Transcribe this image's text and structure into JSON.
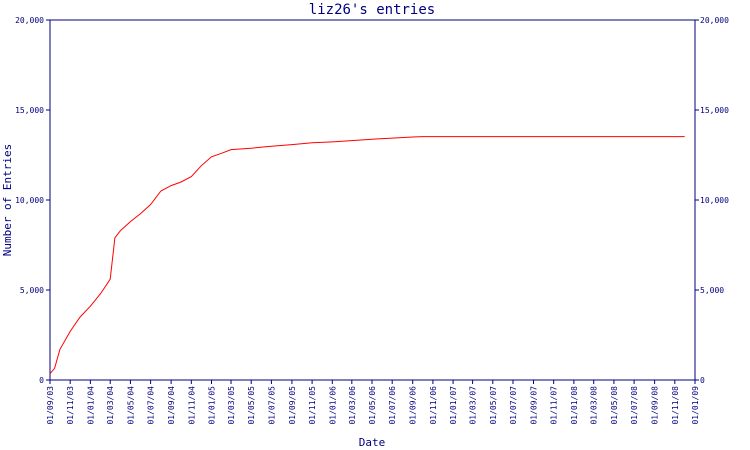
{
  "chart_data": {
    "type": "line",
    "title": "liz26's entries",
    "xlabel": "Date",
    "ylabel": "Number of Entries",
    "ylim": [
      0,
      20000
    ],
    "y_ticks": [
      "0",
      "5,000",
      "10,000",
      "15,000",
      "20,000"
    ],
    "y_tick_values": [
      0,
      5000,
      10000,
      15000,
      20000
    ],
    "x_ticks": [
      "01/09/03",
      "01/11/03",
      "01/01/04",
      "01/03/04",
      "01/05/04",
      "01/07/04",
      "01/09/04",
      "01/11/04",
      "01/01/05",
      "01/03/05",
      "01/05/05",
      "01/07/05",
      "01/09/05",
      "01/11/05",
      "01/01/06",
      "01/03/06",
      "01/05/06",
      "01/07/06",
      "01/09/06",
      "01/11/06",
      "01/01/07",
      "01/03/07",
      "01/05/07",
      "01/07/07",
      "01/09/07",
      "01/11/07",
      "01/01/08",
      "01/03/08",
      "01/05/08",
      "01/07/08",
      "01/09/08",
      "01/11/08",
      "01/01/09"
    ],
    "grid": false,
    "line_color": "#ff0000",
    "axis_color": "#000080",
    "series": [
      {
        "x": [
          "01/09/03",
          "15/09/03",
          "01/10/03",
          "01/11/03",
          "01/12/03",
          "01/01/04",
          "01/02/04",
          "01/03/04",
          "15/03/04",
          "01/04/04",
          "01/05/04",
          "01/06/04",
          "01/07/04",
          "01/08/04",
          "01/09/04",
          "01/10/04",
          "01/11/04",
          "01/12/04",
          "01/01/05",
          "01/02/05",
          "01/03/05",
          "01/05/05",
          "01/07/05",
          "01/09/05",
          "01/11/05",
          "01/01/06",
          "01/03/06",
          "01/05/06",
          "01/07/06",
          "01/09/06",
          "01/10/06",
          "01/11/06",
          "01/01/07",
          "01/06/07",
          "01/01/08",
          "01/06/08",
          "01/11/08",
          "01/12/08"
        ],
        "y": [
          350,
          650,
          1700,
          2700,
          3500,
          4100,
          4800,
          5600,
          7900,
          8300,
          8800,
          9250,
          9750,
          10500,
          10800,
          11000,
          11300,
          11900,
          12400,
          12600,
          12800,
          12880,
          12990,
          13080,
          13180,
          13230,
          13300,
          13380,
          13440,
          13500,
          13520,
          13520,
          13520,
          13520,
          13520,
          13520,
          13520,
          13520
        ]
      }
    ]
  }
}
